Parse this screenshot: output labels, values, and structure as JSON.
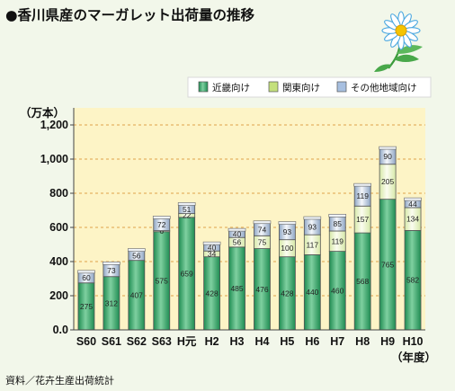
{
  "chart_data": {
    "type": "bar",
    "stacked": true,
    "title": "●香川県産のマーガレット出荷量の推移",
    "ylabel": "（万本）",
    "xlabel": "（年度）",
    "source": "資料／花卉生産出荷統計",
    "ylim": [
      0,
      1300
    ],
    "yticks": [
      "0.0",
      "200",
      "400",
      "600",
      "800",
      "1,000",
      "1,200"
    ],
    "ytick_values": [
      0,
      200,
      400,
      600,
      800,
      1000,
      1200
    ],
    "categories": [
      "S60",
      "S61",
      "S62",
      "S63",
      "H元",
      "H2",
      "H3",
      "H4",
      "H5",
      "H6",
      "H7",
      "H8",
      "H9",
      "H10"
    ],
    "series": [
      {
        "name": "近畿向け",
        "color": "#3aa86b",
        "values": [
          275,
          312,
          407,
          575,
          659,
          428,
          485,
          476,
          428,
          440,
          460,
          568,
          765,
          582
        ]
      },
      {
        "name": "関東向け",
        "color": "#c4e07c",
        "values": [
          null,
          null,
          null,
          6,
          22,
          34,
          56,
          75,
          100,
          117,
          119,
          157,
          205,
          134
        ]
      },
      {
        "name": "その他地域向け",
        "color": "#a7bfe0",
        "values": [
          60,
          73,
          56,
          72,
          51,
          40,
          40,
          74,
          93,
          93,
          85,
          119,
          90,
          44
        ]
      }
    ],
    "grid": true,
    "legend": "top-right"
  }
}
